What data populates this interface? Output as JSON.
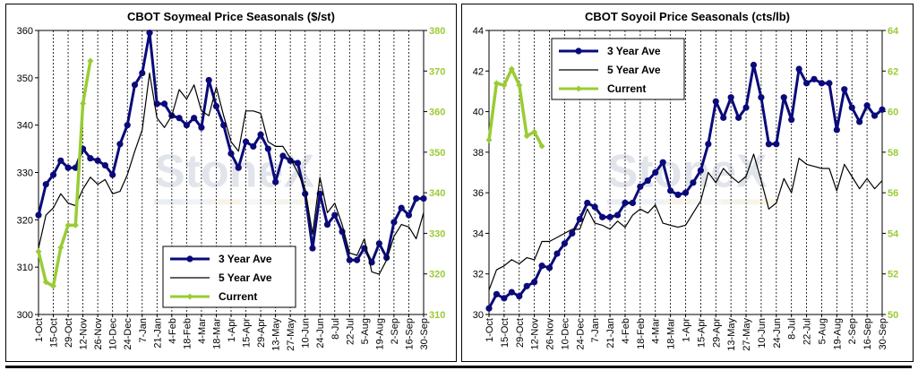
{
  "chart_data": [
    {
      "type": "line",
      "title": "CBOT Soymeal Price Seasonals ($/st)",
      "categories": [
        "1-Oct",
        "15-Oct",
        "29-Oct",
        "12-Nov",
        "26-Nov",
        "10-Dec",
        "24-Dec",
        "7-Jan",
        "21-Jan",
        "4-Feb",
        "18-Feb",
        "4-Mar",
        "18-Mar",
        "1-Apr",
        "15-Apr",
        "29-Apr",
        "13-May",
        "27-May",
        "10-Jun",
        "24-Jun",
        "8-Jul",
        "22-Jul",
        "5-Aug",
        "19-Aug",
        "2-Sep",
        "16-Sep",
        "30-Sep"
      ],
      "ylim": [
        300,
        360
      ],
      "yticks": [
        300,
        310,
        320,
        330,
        340,
        350,
        360
      ],
      "y2lim": [
        310,
        380
      ],
      "y2ticks": [
        310,
        320,
        330,
        340,
        350,
        360,
        370,
        380
      ],
      "grid": "vertical dashed",
      "legend_placement": "bottom-center",
      "watermark": "StoneX",
      "series": [
        {
          "name": "3 Year Ave",
          "axis": "left",
          "color": "#0a0a7a",
          "x": [
            0,
            0.5,
            1,
            1.5,
            2,
            2.5,
            3,
            3.5,
            4,
            4.5,
            5,
            5.5,
            6,
            6.5,
            7,
            7.5,
            8,
            8.5,
            9,
            9.5,
            10,
            10.5,
            11,
            11.5,
            12,
            12.5,
            13,
            13.5,
            14,
            14.5,
            15,
            15.5,
            16,
            16.5,
            17,
            17.5,
            18,
            18.5,
            19,
            19.5,
            20,
            20.5,
            21,
            21.5,
            22,
            22.5,
            23,
            23.5,
            24,
            24.5,
            25,
            25.5,
            26
          ],
          "values": [
            321,
            327.5,
            329.5,
            332.5,
            331,
            331,
            335,
            333,
            332.5,
            331.5,
            329.5,
            336,
            340,
            348.5,
            351,
            359.5,
            344.5,
            344.5,
            342,
            341.5,
            340,
            341.5,
            339.5,
            349.5,
            344,
            340,
            334,
            331,
            336.5,
            335.5,
            338,
            335,
            328,
            333.5,
            332.5,
            332,
            325.5,
            314,
            325.5,
            319,
            321,
            317.5,
            311.5,
            311.5,
            314,
            311,
            315,
            312,
            319.5,
            322.5,
            321,
            324.5,
            324.5
          ]
        },
        {
          "name": "5 Year Ave",
          "axis": "left",
          "color": "#000000",
          "x": [
            0,
            0.5,
            1,
            1.5,
            2,
            2.5,
            3,
            3.5,
            4,
            4.5,
            5,
            5.5,
            6,
            6.5,
            7,
            7.5,
            8,
            8.5,
            9,
            9.5,
            10,
            10.5,
            11,
            11.5,
            12,
            12.5,
            13,
            13.5,
            14,
            14.5,
            15,
            15.5,
            16,
            16.5,
            17,
            17.5,
            18,
            18.5,
            19,
            19.5,
            20,
            20.5,
            21,
            21.5,
            22,
            22.5,
            23,
            23.5,
            24,
            24.5,
            25,
            25.5,
            26
          ],
          "values": [
            314,
            321,
            322.5,
            325.5,
            323.5,
            323,
            326.5,
            329,
            327.5,
            328.5,
            325.5,
            326,
            329.5,
            334.5,
            339,
            351,
            341.5,
            339.5,
            342,
            347.5,
            345.5,
            348.5,
            343,
            342,
            348,
            342,
            336.5,
            334.5,
            343,
            343,
            342.5,
            336.5,
            335.5,
            335.5,
            333,
            330,
            326.5,
            317,
            329,
            321.5,
            323.5,
            319,
            313,
            312.5,
            316,
            309,
            308.5,
            311.5,
            316.5,
            319,
            318.5,
            316,
            321.5
          ]
        },
        {
          "name": "Current",
          "axis": "right",
          "color": "#99cc33",
          "x": [
            0,
            0.5,
            1,
            1.5,
            2,
            2.5,
            3,
            3.5
          ],
          "values": [
            325.5,
            318,
            317,
            326.5,
            332,
            332,
            362,
            372.5
          ]
        }
      ]
    },
    {
      "type": "line",
      "title": "CBOT Soyoil Price Seasonals (cts/lb)",
      "categories": [
        "1-Oct",
        "15-Oct",
        "29-Oct",
        "12-Nov",
        "26-Nov",
        "10-Dec",
        "24-Dec",
        "7-Jan",
        "21-Jan",
        "4-Feb",
        "18-Feb",
        "4-Mar",
        "18-Mar",
        "1-Apr",
        "15-Apr",
        "29-Apr",
        "13-May",
        "27-May",
        "10-Jun",
        "24-Jun",
        "8-Jul",
        "22-Jul",
        "5-Aug",
        "19-Aug",
        "2-Sep",
        "16-Sep",
        "30-Sep"
      ],
      "ylim": [
        30,
        44
      ],
      "yticks": [
        30,
        32,
        34,
        36,
        38,
        40,
        42,
        44
      ],
      "y2lim": [
        50,
        64
      ],
      "y2ticks": [
        50,
        52,
        54,
        56,
        58,
        60,
        62,
        64
      ],
      "grid": "vertical dashed",
      "legend_placement": "top-left",
      "watermark": "StoneX",
      "series": [
        {
          "name": "3 Year Ave",
          "axis": "left",
          "color": "#0a0a7a",
          "x": [
            0,
            0.5,
            1,
            1.5,
            2,
            2.5,
            3,
            3.5,
            4,
            4.5,
            5,
            5.5,
            6,
            6.5,
            7,
            7.5,
            8,
            8.5,
            9,
            9.5,
            10,
            10.5,
            11,
            11.5,
            12,
            12.5,
            13,
            13.5,
            14,
            14.5,
            15,
            15.5,
            16,
            16.5,
            17,
            17.5,
            18,
            18.5,
            19,
            19.5,
            20,
            20.5,
            21,
            21.5,
            22,
            22.5,
            23,
            23.5,
            24,
            24.5,
            25,
            25.5,
            26
          ],
          "values": [
            30.3,
            31,
            30.8,
            31.1,
            30.9,
            31.4,
            31.6,
            32.4,
            32.3,
            33,
            33.5,
            34,
            34.7,
            35.5,
            35.3,
            34.8,
            34.8,
            34.9,
            35.5,
            35.5,
            36.3,
            36.6,
            37,
            37.5,
            36.1,
            35.9,
            36,
            36.5,
            37.1,
            38.4,
            40.5,
            39.7,
            40.7,
            39.7,
            40.2,
            42.3,
            40.7,
            38.4,
            38.4,
            40.7,
            39.6,
            42.1,
            41.4,
            41.6,
            41.4,
            41.4,
            39.1,
            41.1,
            40.2,
            39.5,
            40.3,
            39.8,
            40.1
          ]
        },
        {
          "name": "5 Year Ave",
          "axis": "left",
          "color": "#000000",
          "x": [
            0,
            0.5,
            1,
            1.5,
            2,
            2.5,
            3,
            3.5,
            4,
            4.5,
            5,
            5.5,
            6,
            6.5,
            7,
            7.5,
            8,
            8.5,
            9,
            9.5,
            10,
            10.5,
            11,
            11.5,
            12,
            12.5,
            13,
            13.5,
            14,
            14.5,
            15,
            15.5,
            16,
            16.5,
            17,
            17.5,
            18,
            18.5,
            19,
            19.5,
            20,
            20.5,
            21,
            21.5,
            22,
            22.5,
            23,
            23.5,
            24,
            24.5,
            25,
            25.5,
            26
          ],
          "values": [
            31.2,
            32.2,
            32.4,
            32.7,
            32.5,
            32.8,
            32.7,
            33.6,
            33.6,
            33.8,
            34,
            34.2,
            34.2,
            35.2,
            34.5,
            34.4,
            34.2,
            34.6,
            34.3,
            34.9,
            35.2,
            35,
            35.4,
            34.5,
            34.4,
            34.3,
            34.4,
            35,
            35.6,
            37,
            36.5,
            37.2,
            36.8,
            36.5,
            36.8,
            37.9,
            36.6,
            35.2,
            35.5,
            36.7,
            36,
            37.7,
            37.4,
            37.3,
            37.2,
            37.2,
            36.1,
            37.4,
            36.8,
            36.2,
            36.7,
            36.2,
            36.6
          ]
        },
        {
          "name": "Current",
          "axis": "right",
          "color": "#99cc33",
          "x": [
            0,
            0.5,
            1,
            1.5,
            2,
            2.5,
            3,
            3.5
          ],
          "values": [
            58.6,
            61.4,
            61.3,
            62.1,
            61.3,
            58.8,
            59,
            58.3
          ]
        }
      ]
    }
  ]
}
